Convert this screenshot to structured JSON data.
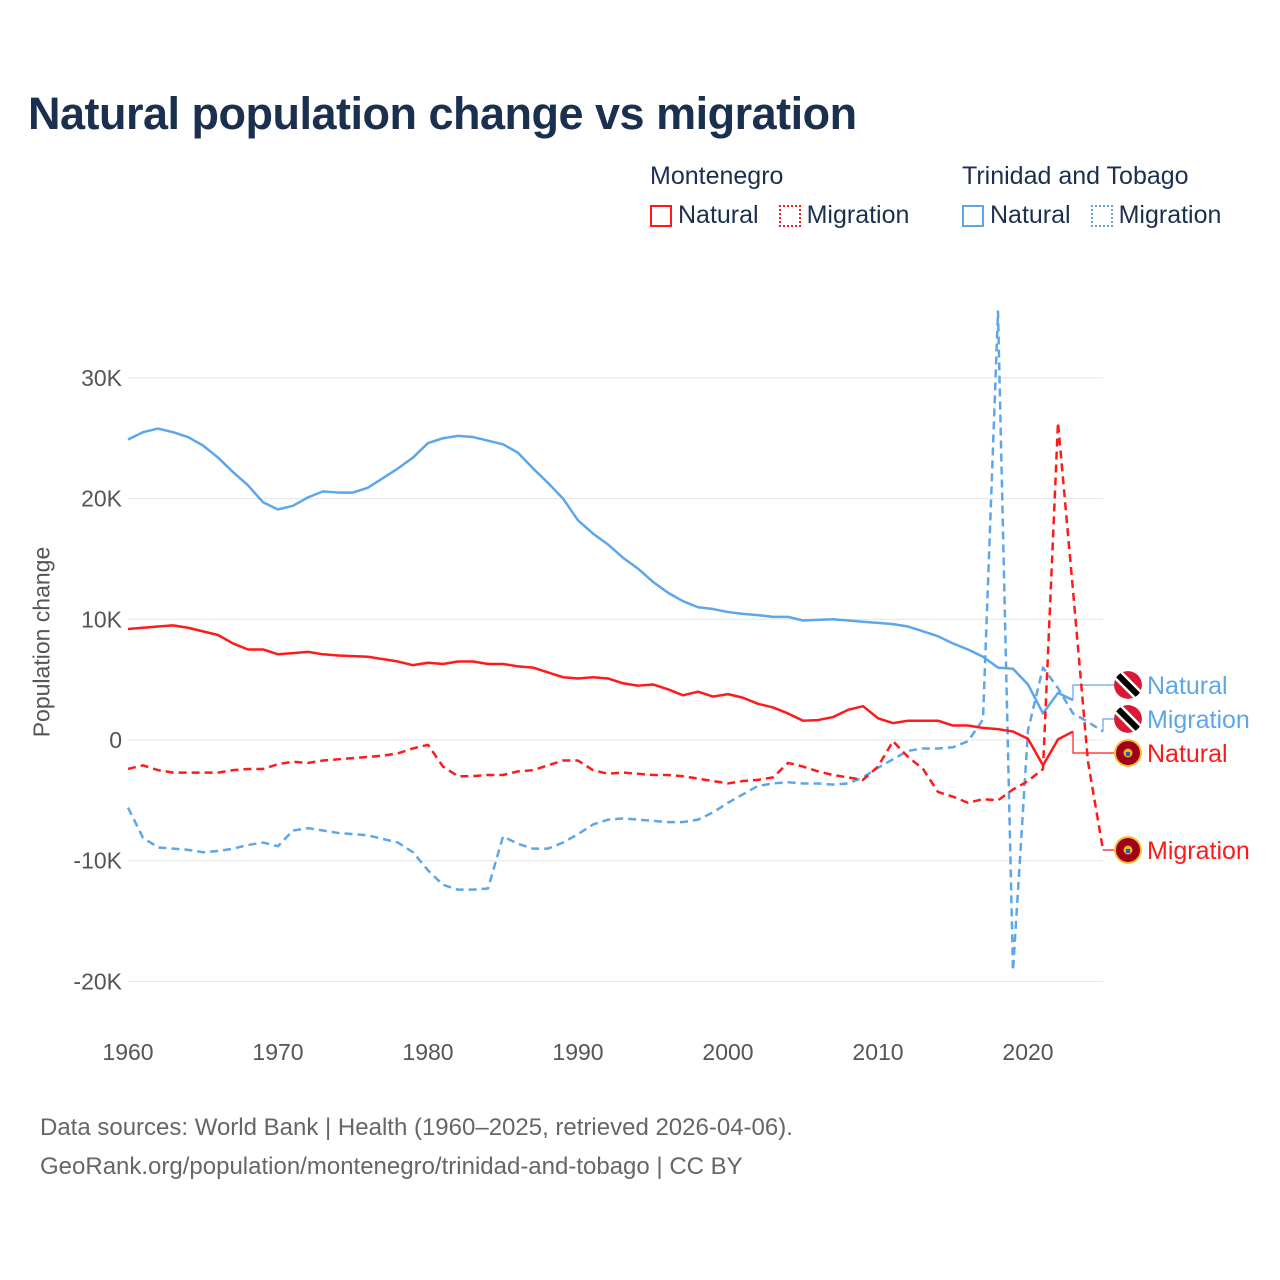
{
  "title": "Natural population change vs migration",
  "legend": {
    "groups": [
      {
        "country": "Montenegro",
        "items": [
          {
            "label": "Natural",
            "style": "solid"
          },
          {
            "label": "Migration",
            "style": "dotted"
          }
        ],
        "color": "#ff1a1a"
      },
      {
        "country": "Trinidad and Tobago",
        "items": [
          {
            "label": "Natural",
            "style": "solid"
          },
          {
            "label": "Migration",
            "style": "dotted"
          }
        ],
        "color": "#5ea6ea"
      }
    ]
  },
  "footer": {
    "line1": "Data sources: World Bank | Health (1960–2025, retrieved 2026-04-06).",
    "line2": "GeoRank.org/population/montenegro/trinidad-and-tobago | CC BY"
  },
  "chart_data": {
    "type": "line",
    "title": "Natural population change vs migration",
    "xlabel": "",
    "ylabel": "Population change",
    "xlim": [
      1960,
      2025
    ],
    "ylim": [
      -20000,
      35500
    ],
    "x_ticks": [
      1960,
      1970,
      1980,
      1990,
      2000,
      2010,
      2020
    ],
    "x_tick_labels": [
      "1960",
      "1970",
      "1980",
      "1990",
      "2000",
      "2010",
      "2020"
    ],
    "y_ticks": [
      30000,
      20000,
      10000,
      0,
      -10000,
      -20000
    ],
    "y_tick_labels": [
      "30K",
      "20K",
      "10K",
      "0",
      "-10K",
      "-20K"
    ],
    "grid": true,
    "legend_position": "top-right",
    "x_start": 1960,
    "series": [
      {
        "name": "Natural",
        "country": "Trinidad and Tobago",
        "flag": "trinidad-and-tobago-flag",
        "color": "#5ea6ea",
        "dash": "solid",
        "values": [
          24900,
          25500,
          25800,
          25500,
          25100,
          24400,
          23400,
          22200,
          21100,
          19700,
          19100,
          19400,
          20100,
          20600,
          20500,
          20500,
          20900,
          21700,
          22500,
          23400,
          24600,
          25000,
          25200,
          25100,
          24800,
          24500,
          23800,
          22500,
          21300,
          20000,
          18200,
          17100,
          16200,
          15100,
          14200,
          13100,
          12200,
          11500,
          11000,
          10850,
          10600,
          10450,
          10350,
          10200,
          10200,
          9900,
          9950,
          10000,
          9900,
          9800,
          9700,
          9600,
          9400,
          9000,
          8600,
          8000,
          7500,
          6900,
          6000,
          5900,
          4600,
          2200,
          3900,
          3300
        ]
      },
      {
        "name": "Migration",
        "country": "Trinidad and Tobago",
        "flag": "trinidad-and-tobago-flag",
        "color": "#5ea6ea",
        "dash": "dashed",
        "values": [
          -5600,
          -8100,
          -8900,
          -9000,
          -9100,
          -9300,
          -9200,
          -9000,
          -8700,
          -8500,
          -8800,
          -7500,
          -7300,
          -7500,
          -7700,
          -7800,
          -7900,
          -8200,
          -8500,
          -9300,
          -10800,
          -12000,
          -12400,
          -12400,
          -12300,
          -8000,
          -8600,
          -9000,
          -9000,
          -8500,
          -7800,
          -7000,
          -6600,
          -6500,
          -6600,
          -6700,
          -6800,
          -6800,
          -6600,
          -6000,
          -5200,
          -4500,
          -3800,
          -3600,
          -3500,
          -3600,
          -3600,
          -3700,
          -3600,
          -3100,
          -2300,
          -1600,
          -900,
          -700,
          -700,
          -600,
          -100,
          1700,
          35500,
          -19100,
          800,
          6000,
          4300,
          2200,
          1500,
          700
        ]
      },
      {
        "name": "Natural",
        "country": "Montenegro",
        "flag": "montenegro-flag",
        "color": "#ff1a1a",
        "dash": "solid",
        "values": [
          9200,
          9300,
          9400,
          9500,
          9300,
          9000,
          8700,
          8000,
          7500,
          7500,
          7100,
          7200,
          7300,
          7100,
          7000,
          6950,
          6900,
          6700,
          6500,
          6200,
          6400,
          6300,
          6500,
          6500,
          6300,
          6300,
          6100,
          6000,
          5600,
          5200,
          5100,
          5200,
          5100,
          4700,
          4500,
          4600,
          4200,
          3700,
          4000,
          3600,
          3800,
          3500,
          3000,
          2700,
          2200,
          1600,
          1650,
          1900,
          2500,
          2800,
          1800,
          1400,
          1600,
          1600,
          1600,
          1200,
          1200,
          1000,
          900,
          700,
          100,
          -2100,
          50,
          700
        ]
      },
      {
        "name": "Migration",
        "country": "Montenegro",
        "flag": "montenegro-flag",
        "color": "#ff1a1a",
        "dash": "dashed",
        "values": [
          -2400,
          -2100,
          -2500,
          -2700,
          -2700,
          -2700,
          -2700,
          -2500,
          -2400,
          -2400,
          -2000,
          -1800,
          -1900,
          -1700,
          -1600,
          -1500,
          -1400,
          -1300,
          -1100,
          -700,
          -400,
          -2200,
          -3000,
          -3000,
          -2900,
          -2900,
          -2600,
          -2500,
          -2100,
          -1700,
          -1700,
          -2500,
          -2800,
          -2700,
          -2800,
          -2900,
          -2900,
          -3000,
          -3200,
          -3400,
          -3600,
          -3400,
          -3300,
          -3100,
          -1900,
          -2200,
          -2600,
          -2900,
          -3100,
          -3300,
          -2200,
          -100,
          -1400,
          -2400,
          -4300,
          -4700,
          -5200,
          -4900,
          -5000,
          -4100,
          -3400,
          -2400,
          26300,
          12400,
          -1800,
          -9100
        ]
      }
    ]
  }
}
